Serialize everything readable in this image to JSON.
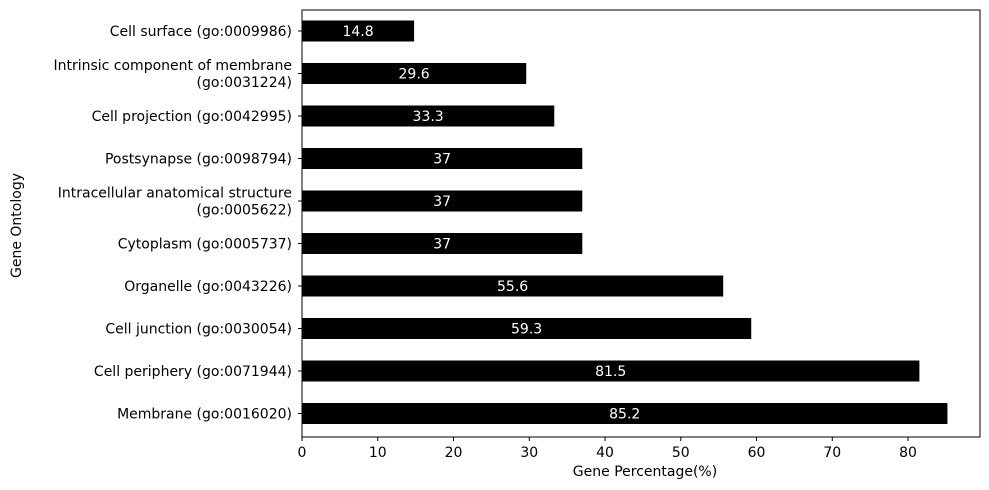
{
  "chart_data": {
    "type": "bar",
    "orientation": "horizontal",
    "categories": [
      [
        "Cell surface (go:0009986)"
      ],
      [
        "Intrinsic component of membrane",
        "(go:0031224)"
      ],
      [
        "Cell projection (go:0042995)"
      ],
      [
        "Postsynapse (go:0098794)"
      ],
      [
        "Intracellular anatomical structure",
        "(go:0005622)"
      ],
      [
        "Cytoplasm (go:0005737)"
      ],
      [
        "Organelle (go:0043226)"
      ],
      [
        "Cell junction (go:0030054)"
      ],
      [
        "Cell periphery (go:0071944)"
      ],
      [
        "Membrane (go:0016020)"
      ]
    ],
    "values": [
      14.8,
      29.6,
      33.3,
      37,
      37,
      37,
      55.6,
      59.3,
      81.5,
      85.2
    ],
    "data_labels": [
      "14.8",
      "29.6",
      "33.3",
      "37",
      "37",
      "37",
      "55.6",
      "59.3",
      "81.5",
      "85.2"
    ],
    "xlabel": "Gene Percentage(%)",
    "ylabel": "Gene Ontology",
    "xlim": [
      0,
      89.5
    ],
    "xticks": [
      0,
      10,
      20,
      30,
      40,
      50,
      60,
      70,
      80
    ],
    "grid": false,
    "bar_color": "#000000",
    "label_color": "#ffffff"
  }
}
